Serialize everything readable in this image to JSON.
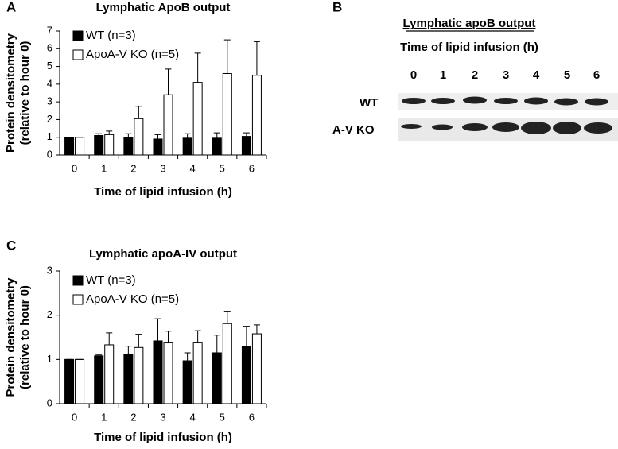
{
  "chart_data": [
    {
      "type": "bar",
      "panel_label": "A",
      "title": "Lymphatic ApoB output",
      "ylabel": [
        "Protein densitometry",
        "(relative to hour 0)"
      ],
      "xlabel": "Time of lipid infusion (h)",
      "categories": [
        "0",
        "1",
        "2",
        "3",
        "4",
        "5",
        "6"
      ],
      "series": [
        {
          "name": "WT (n=3)",
          "color": "#000000",
          "values": [
            1,
            1.1,
            1,
            0.9,
            0.95,
            0.95,
            1.05
          ],
          "errors": [
            0,
            0.1,
            0.2,
            0.25,
            0.25,
            0.3,
            0.2
          ]
        },
        {
          "name": "ApoA-V KO (n=5)",
          "color": "#ffffff",
          "values": [
            1,
            1.15,
            2.05,
            3.4,
            4.1,
            4.6,
            4.5
          ],
          "errors": [
            0,
            0.2,
            0.7,
            1.45,
            1.65,
            1.9,
            1.9
          ]
        }
      ],
      "ylim": [
        0,
        7
      ],
      "yticks": [
        0,
        1,
        2,
        3,
        4,
        5,
        6,
        7
      ],
      "grid": false
    },
    {
      "type": "bar",
      "panel_label": "C",
      "title": "Lymphatic apoA-IV output",
      "ylabel": [
        "Protein densitometry",
        "(relative to hour 0)"
      ],
      "xlabel": "Time of lipid infusion (h)",
      "categories": [
        "0",
        "1",
        "2",
        "3",
        "4",
        "5",
        "6"
      ],
      "series": [
        {
          "name": "WT (n=3)",
          "color": "#000000",
          "values": [
            1,
            1.08,
            1.12,
            1.42,
            0.97,
            1.15,
            1.3
          ],
          "errors": [
            0,
            0.02,
            0.18,
            0.5,
            0.18,
            0.4,
            0.45
          ]
        },
        {
          "name": "ApoA-V KO (n=5)",
          "color": "#ffffff",
          "values": [
            1,
            1.33,
            1.27,
            1.39,
            1.39,
            1.81,
            1.58
          ],
          "errors": [
            0,
            0.27,
            0.3,
            0.25,
            0.26,
            0.28,
            0.2
          ]
        }
      ],
      "ylim": [
        0,
        3
      ],
      "yticks": [
        0,
        1,
        2,
        3
      ],
      "grid": false
    }
  ],
  "blot": {
    "panel_label": "B",
    "title": "Lymphatic apoB output",
    "xlabel": "Time of lipid infusion (h)",
    "lanes": [
      0,
      1,
      2,
      3,
      4,
      5,
      6
    ],
    "rows": [
      "WT",
      "A-V KO"
    ]
  }
}
